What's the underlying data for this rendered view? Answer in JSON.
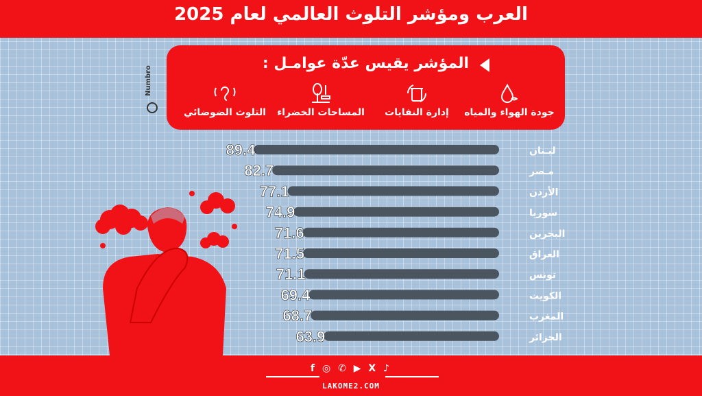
{
  "header": {
    "title": "العرب ومؤشر التلوث العالمي لعام 2025"
  },
  "info": {
    "heading": "المؤشر يقيس عدّة عوامـل :",
    "factors": [
      {
        "label": "جودة الهواء والمياه",
        "icon": "water-air-icon"
      },
      {
        "label": "إدارة النفايات",
        "icon": "recycle-bin-icon"
      },
      {
        "label": "المساحات الخضراء",
        "icon": "park-tree-icon"
      },
      {
        "label": "التلوث الضوضائي",
        "icon": "ear-noise-icon"
      }
    ],
    "source": "Numbro"
  },
  "chart_data": {
    "type": "bar",
    "orientation": "horizontal",
    "categories": [
      "لبـنان",
      "مـصر",
      "الأردن",
      "سوريا",
      "البحرين",
      "العراق",
      "تونس",
      "الكويت",
      "المغرب",
      "الجزائر"
    ],
    "values": [
      89.4,
      82.7,
      77.1,
      74.9,
      71.6,
      71.5,
      71.1,
      69.4,
      68.7,
      63.9
    ],
    "value_labels": [
      "89.4",
      "82.7",
      "77.1",
      "74.9",
      "71.6",
      "71.5",
      "71.1",
      "69.4",
      "68.7",
      "63.9"
    ],
    "bar_color": "#4a5560",
    "label_color": "#ffffff",
    "title": "",
    "xlabel": "",
    "ylabel": ""
  },
  "footer": {
    "social": "f ◎ ✆ ▶ X ♪",
    "site": "LAKOME2.COM"
  },
  "colors": {
    "accent": "#f11218",
    "background": "#a9c2dc"
  }
}
